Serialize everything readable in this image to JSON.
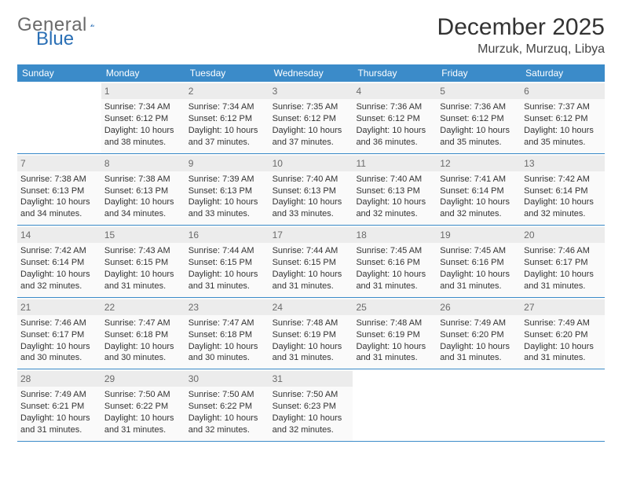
{
  "logo": {
    "text_general": "General",
    "text_blue": "Blue"
  },
  "header": {
    "month_title": "December 2025",
    "location": "Murzuk, Murzuq, Libya"
  },
  "style": {
    "header_color": "#3b8bc9",
    "daynum_bg": "#ececec",
    "cell_bg": "#fafafa",
    "text_color": "#333333",
    "logo_gray": "#6a6a6a",
    "logo_blue": "#2a6fb5",
    "title_fontsize": 30,
    "location_fontsize": 16,
    "weekday_fontsize": 12,
    "cell_fontsize": 11
  },
  "weekdays": [
    "Sunday",
    "Monday",
    "Tuesday",
    "Wednesday",
    "Thursday",
    "Friday",
    "Saturday"
  ],
  "weeks": [
    [
      null,
      {
        "n": "1",
        "sr": "Sunrise: 7:34 AM",
        "ss": "Sunset: 6:12 PM",
        "d1": "Daylight: 10 hours",
        "d2": "and 38 minutes."
      },
      {
        "n": "2",
        "sr": "Sunrise: 7:34 AM",
        "ss": "Sunset: 6:12 PM",
        "d1": "Daylight: 10 hours",
        "d2": "and 37 minutes."
      },
      {
        "n": "3",
        "sr": "Sunrise: 7:35 AM",
        "ss": "Sunset: 6:12 PM",
        "d1": "Daylight: 10 hours",
        "d2": "and 37 minutes."
      },
      {
        "n": "4",
        "sr": "Sunrise: 7:36 AM",
        "ss": "Sunset: 6:12 PM",
        "d1": "Daylight: 10 hours",
        "d2": "and 36 minutes."
      },
      {
        "n": "5",
        "sr": "Sunrise: 7:36 AM",
        "ss": "Sunset: 6:12 PM",
        "d1": "Daylight: 10 hours",
        "d2": "and 35 minutes."
      },
      {
        "n": "6",
        "sr": "Sunrise: 7:37 AM",
        "ss": "Sunset: 6:12 PM",
        "d1": "Daylight: 10 hours",
        "d2": "and 35 minutes."
      }
    ],
    [
      {
        "n": "7",
        "sr": "Sunrise: 7:38 AM",
        "ss": "Sunset: 6:13 PM",
        "d1": "Daylight: 10 hours",
        "d2": "and 34 minutes."
      },
      {
        "n": "8",
        "sr": "Sunrise: 7:38 AM",
        "ss": "Sunset: 6:13 PM",
        "d1": "Daylight: 10 hours",
        "d2": "and 34 minutes."
      },
      {
        "n": "9",
        "sr": "Sunrise: 7:39 AM",
        "ss": "Sunset: 6:13 PM",
        "d1": "Daylight: 10 hours",
        "d2": "and 33 minutes."
      },
      {
        "n": "10",
        "sr": "Sunrise: 7:40 AM",
        "ss": "Sunset: 6:13 PM",
        "d1": "Daylight: 10 hours",
        "d2": "and 33 minutes."
      },
      {
        "n": "11",
        "sr": "Sunrise: 7:40 AM",
        "ss": "Sunset: 6:13 PM",
        "d1": "Daylight: 10 hours",
        "d2": "and 32 minutes."
      },
      {
        "n": "12",
        "sr": "Sunrise: 7:41 AM",
        "ss": "Sunset: 6:14 PM",
        "d1": "Daylight: 10 hours",
        "d2": "and 32 minutes."
      },
      {
        "n": "13",
        "sr": "Sunrise: 7:42 AM",
        "ss": "Sunset: 6:14 PM",
        "d1": "Daylight: 10 hours",
        "d2": "and 32 minutes."
      }
    ],
    [
      {
        "n": "14",
        "sr": "Sunrise: 7:42 AM",
        "ss": "Sunset: 6:14 PM",
        "d1": "Daylight: 10 hours",
        "d2": "and 32 minutes."
      },
      {
        "n": "15",
        "sr": "Sunrise: 7:43 AM",
        "ss": "Sunset: 6:15 PM",
        "d1": "Daylight: 10 hours",
        "d2": "and 31 minutes."
      },
      {
        "n": "16",
        "sr": "Sunrise: 7:44 AM",
        "ss": "Sunset: 6:15 PM",
        "d1": "Daylight: 10 hours",
        "d2": "and 31 minutes."
      },
      {
        "n": "17",
        "sr": "Sunrise: 7:44 AM",
        "ss": "Sunset: 6:15 PM",
        "d1": "Daylight: 10 hours",
        "d2": "and 31 minutes."
      },
      {
        "n": "18",
        "sr": "Sunrise: 7:45 AM",
        "ss": "Sunset: 6:16 PM",
        "d1": "Daylight: 10 hours",
        "d2": "and 31 minutes."
      },
      {
        "n": "19",
        "sr": "Sunrise: 7:45 AM",
        "ss": "Sunset: 6:16 PM",
        "d1": "Daylight: 10 hours",
        "d2": "and 31 minutes."
      },
      {
        "n": "20",
        "sr": "Sunrise: 7:46 AM",
        "ss": "Sunset: 6:17 PM",
        "d1": "Daylight: 10 hours",
        "d2": "and 31 minutes."
      }
    ],
    [
      {
        "n": "21",
        "sr": "Sunrise: 7:46 AM",
        "ss": "Sunset: 6:17 PM",
        "d1": "Daylight: 10 hours",
        "d2": "and 30 minutes."
      },
      {
        "n": "22",
        "sr": "Sunrise: 7:47 AM",
        "ss": "Sunset: 6:18 PM",
        "d1": "Daylight: 10 hours",
        "d2": "and 30 minutes."
      },
      {
        "n": "23",
        "sr": "Sunrise: 7:47 AM",
        "ss": "Sunset: 6:18 PM",
        "d1": "Daylight: 10 hours",
        "d2": "and 30 minutes."
      },
      {
        "n": "24",
        "sr": "Sunrise: 7:48 AM",
        "ss": "Sunset: 6:19 PM",
        "d1": "Daylight: 10 hours",
        "d2": "and 31 minutes."
      },
      {
        "n": "25",
        "sr": "Sunrise: 7:48 AM",
        "ss": "Sunset: 6:19 PM",
        "d1": "Daylight: 10 hours",
        "d2": "and 31 minutes."
      },
      {
        "n": "26",
        "sr": "Sunrise: 7:49 AM",
        "ss": "Sunset: 6:20 PM",
        "d1": "Daylight: 10 hours",
        "d2": "and 31 minutes."
      },
      {
        "n": "27",
        "sr": "Sunrise: 7:49 AM",
        "ss": "Sunset: 6:20 PM",
        "d1": "Daylight: 10 hours",
        "d2": "and 31 minutes."
      }
    ],
    [
      {
        "n": "28",
        "sr": "Sunrise: 7:49 AM",
        "ss": "Sunset: 6:21 PM",
        "d1": "Daylight: 10 hours",
        "d2": "and 31 minutes."
      },
      {
        "n": "29",
        "sr": "Sunrise: 7:50 AM",
        "ss": "Sunset: 6:22 PM",
        "d1": "Daylight: 10 hours",
        "d2": "and 31 minutes."
      },
      {
        "n": "30",
        "sr": "Sunrise: 7:50 AM",
        "ss": "Sunset: 6:22 PM",
        "d1": "Daylight: 10 hours",
        "d2": "and 32 minutes."
      },
      {
        "n": "31",
        "sr": "Sunrise: 7:50 AM",
        "ss": "Sunset: 6:23 PM",
        "d1": "Daylight: 10 hours",
        "d2": "and 32 minutes."
      },
      null,
      null,
      null
    ]
  ]
}
